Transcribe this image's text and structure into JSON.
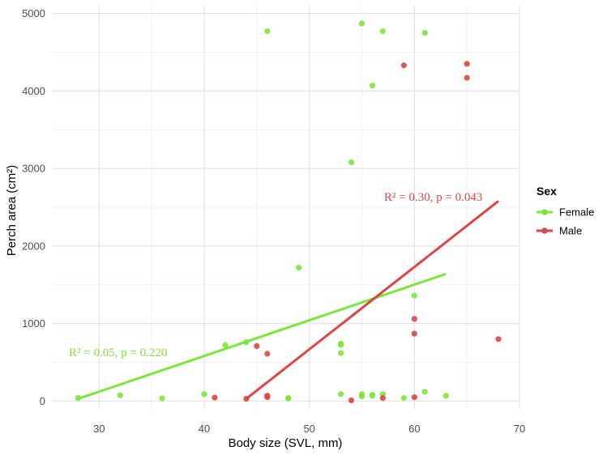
{
  "chart_data": {
    "type": "scatter",
    "xlabel": "Body size (SVL, mm)",
    "ylabel": "Perch area (cm²)",
    "xlim": [
      25.5,
      70
    ],
    "ylim": [
      -100,
      5100
    ],
    "x_ticks": [
      30,
      40,
      50,
      60,
      70
    ],
    "y_ticks": [
      0,
      1000,
      2000,
      3000,
      4000,
      5000
    ],
    "grid": true,
    "legend": {
      "title": "Sex",
      "position": "right"
    },
    "series": [
      {
        "name": "Female",
        "color": "#7CE53A",
        "points": [
          [
            28,
            40
          ],
          [
            32,
            75
          ],
          [
            36,
            35
          ],
          [
            40,
            90
          ],
          [
            42,
            725
          ],
          [
            44,
            760
          ],
          [
            46,
            4770
          ],
          [
            48,
            40
          ],
          [
            48,
            35
          ],
          [
            49,
            1720
          ],
          [
            53,
            740
          ],
          [
            53,
            725
          ],
          [
            53,
            620
          ],
          [
            53,
            90
          ],
          [
            54,
            3080
          ],
          [
            55,
            4870
          ],
          [
            55,
            90
          ],
          [
            55,
            60
          ],
          [
            56,
            4070
          ],
          [
            56,
            80
          ],
          [
            56,
            70
          ],
          [
            57,
            4770
          ],
          [
            57,
            90
          ],
          [
            59,
            40
          ],
          [
            60,
            1360
          ],
          [
            61,
            4750
          ],
          [
            61,
            120
          ],
          [
            63,
            70
          ]
        ],
        "fit": {
          "x": [
            28,
            63
          ],
          "y": [
            30,
            1640
          ]
        },
        "annotation": "R² = 0.05, p = 0.220"
      },
      {
        "name": "Male",
        "color": "#D94545",
        "points": [
          [
            41,
            45
          ],
          [
            44,
            30
          ],
          [
            45,
            710
          ],
          [
            46,
            610
          ],
          [
            46,
            70
          ],
          [
            46,
            50
          ],
          [
            54,
            10
          ],
          [
            57,
            40
          ],
          [
            59,
            4330
          ],
          [
            60,
            1060
          ],
          [
            60,
            870
          ],
          [
            60,
            50
          ],
          [
            65,
            4350
          ],
          [
            65,
            4170
          ],
          [
            68,
            800
          ]
        ],
        "fit": {
          "x": [
            44,
            68
          ],
          "y": [
            30,
            2580
          ]
        },
        "annotation": "R² = 0.30, p = 0.043"
      }
    ]
  }
}
